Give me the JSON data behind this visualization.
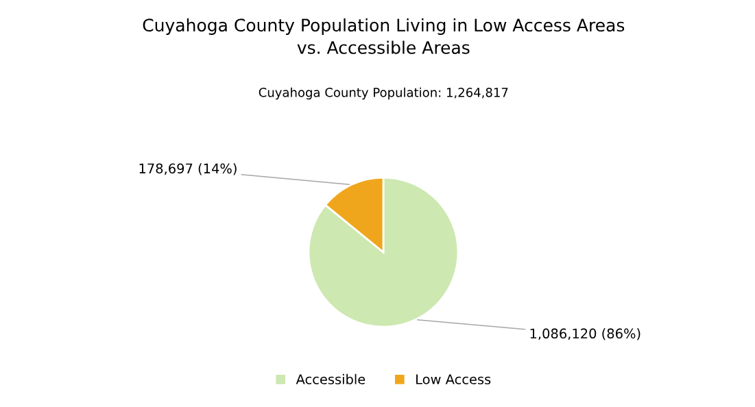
{
  "chart_data": {
    "type": "pie",
    "title": "Cuyahoga County Population Living in Low Access Areas\nvs. Accessible Areas",
    "subtitle": "Cuyahoga County Population: 1,264,817",
    "categories": [
      "Accessible",
      "Low Access"
    ],
    "values": [
      1086120,
      178697
    ],
    "colors": [
      "#cde8b0",
      "#f0a61c"
    ],
    "value_labels": [
      "1,086,120 (86%)",
      "178,697 (14%)"
    ],
    "legend": "bottom"
  }
}
